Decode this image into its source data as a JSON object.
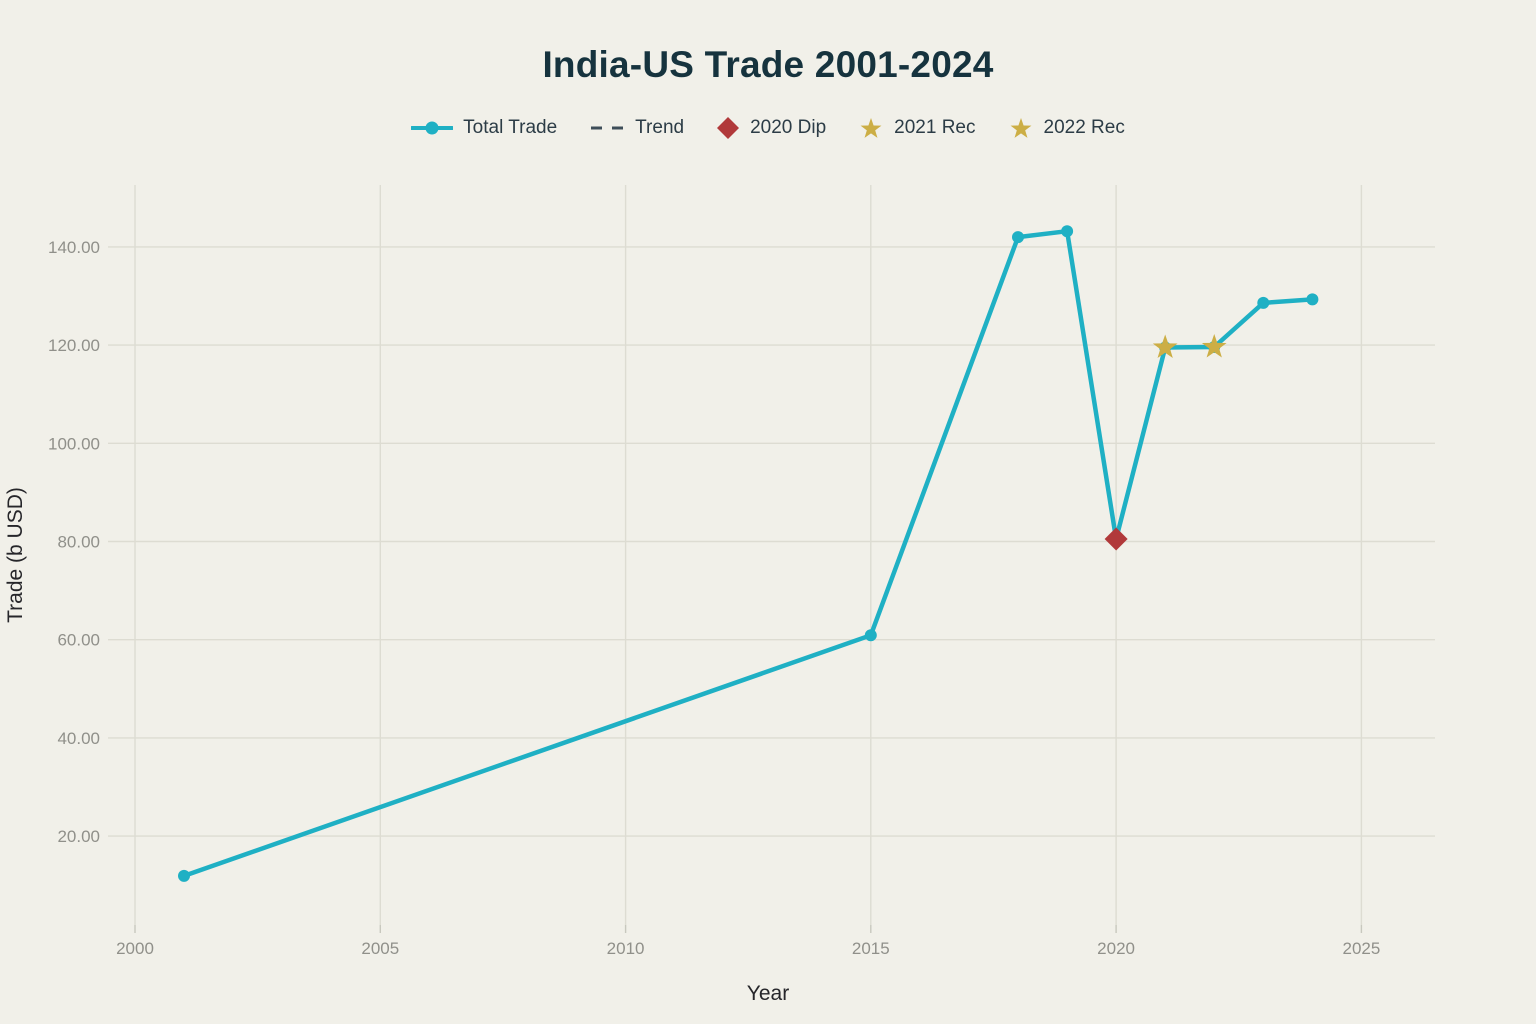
{
  "colors": {
    "background": "#f1f0e9",
    "grid": "#dddcd2",
    "tick_mark": "#c8c8be",
    "tick_text": "#90908a",
    "axis_title_text": "#26262a",
    "title_text": "#16333e",
    "legend_text": "#2c3c46",
    "series_teal": "#1fb0c4",
    "trend_slate": "#3e4e59",
    "dip_red": "#b1393a",
    "rec_gold": "#ccae45"
  },
  "legend": {
    "items": [
      {
        "label": "Total Trade",
        "marker": "line-dot",
        "color": "#1fb0c4"
      },
      {
        "label": "Trend",
        "marker": "dashes",
        "color": "#3e4e59"
      },
      {
        "label": "2020 Dip",
        "marker": "diamond",
        "color": "#b1393a"
      },
      {
        "label": "2021 Rec",
        "marker": "star",
        "color": "#ccae45"
      },
      {
        "label": "2022 Rec",
        "marker": "star",
        "color": "#ccae45"
      }
    ]
  },
  "chart_data": {
    "type": "line",
    "title": "India-US Trade 2001-2024",
    "xlabel": "Year",
    "ylabel": "Trade (b USD)",
    "grid": true,
    "legend_position": "top-center",
    "xlim": [
      1999.45,
      2026.5
    ],
    "ylim": [
      1.9,
      152.6
    ],
    "x_ticks": [
      {
        "value": 2000,
        "label": "2000"
      },
      {
        "value": 2005,
        "label": "2005"
      },
      {
        "value": 2010,
        "label": "2010"
      },
      {
        "value": 2015,
        "label": "2015"
      },
      {
        "value": 2020,
        "label": "2020"
      },
      {
        "value": 2025,
        "label": "2025"
      }
    ],
    "y_ticks": [
      {
        "value": 20,
        "label": "20.00"
      },
      {
        "value": 40,
        "label": "40.00"
      },
      {
        "value": 60,
        "label": "60.00"
      },
      {
        "value": 80,
        "label": "80.00"
      },
      {
        "value": 100,
        "label": "100.00"
      },
      {
        "value": 120,
        "label": "120.00"
      },
      {
        "value": 140,
        "label": "140.00"
      }
    ],
    "series": [
      {
        "name": "Total Trade",
        "color": "#1fb0c4",
        "marker": "circle",
        "x": [
          2001,
          2015,
          2018,
          2019,
          2020,
          2021,
          2022,
          2023,
          2024
        ],
        "y": [
          11.9,
          60.9,
          142.0,
          143.2,
          80.5,
          119.5,
          119.6,
          128.6,
          129.3
        ]
      },
      {
        "name": "Trend",
        "color": "#3e4e59",
        "style": "dashed",
        "visible_in_plot": false,
        "x": [],
        "y": []
      }
    ],
    "annotations": [
      {
        "name": "2020 Dip",
        "marker": "diamond",
        "color": "#b1393a",
        "x": 2020,
        "y": 80.5
      },
      {
        "name": "2021 Rec",
        "marker": "star",
        "color": "#ccae45",
        "x": 2021,
        "y": 119.5
      },
      {
        "name": "2022 Rec",
        "marker": "star",
        "color": "#ccae45",
        "x": 2022,
        "y": 119.6
      }
    ]
  }
}
